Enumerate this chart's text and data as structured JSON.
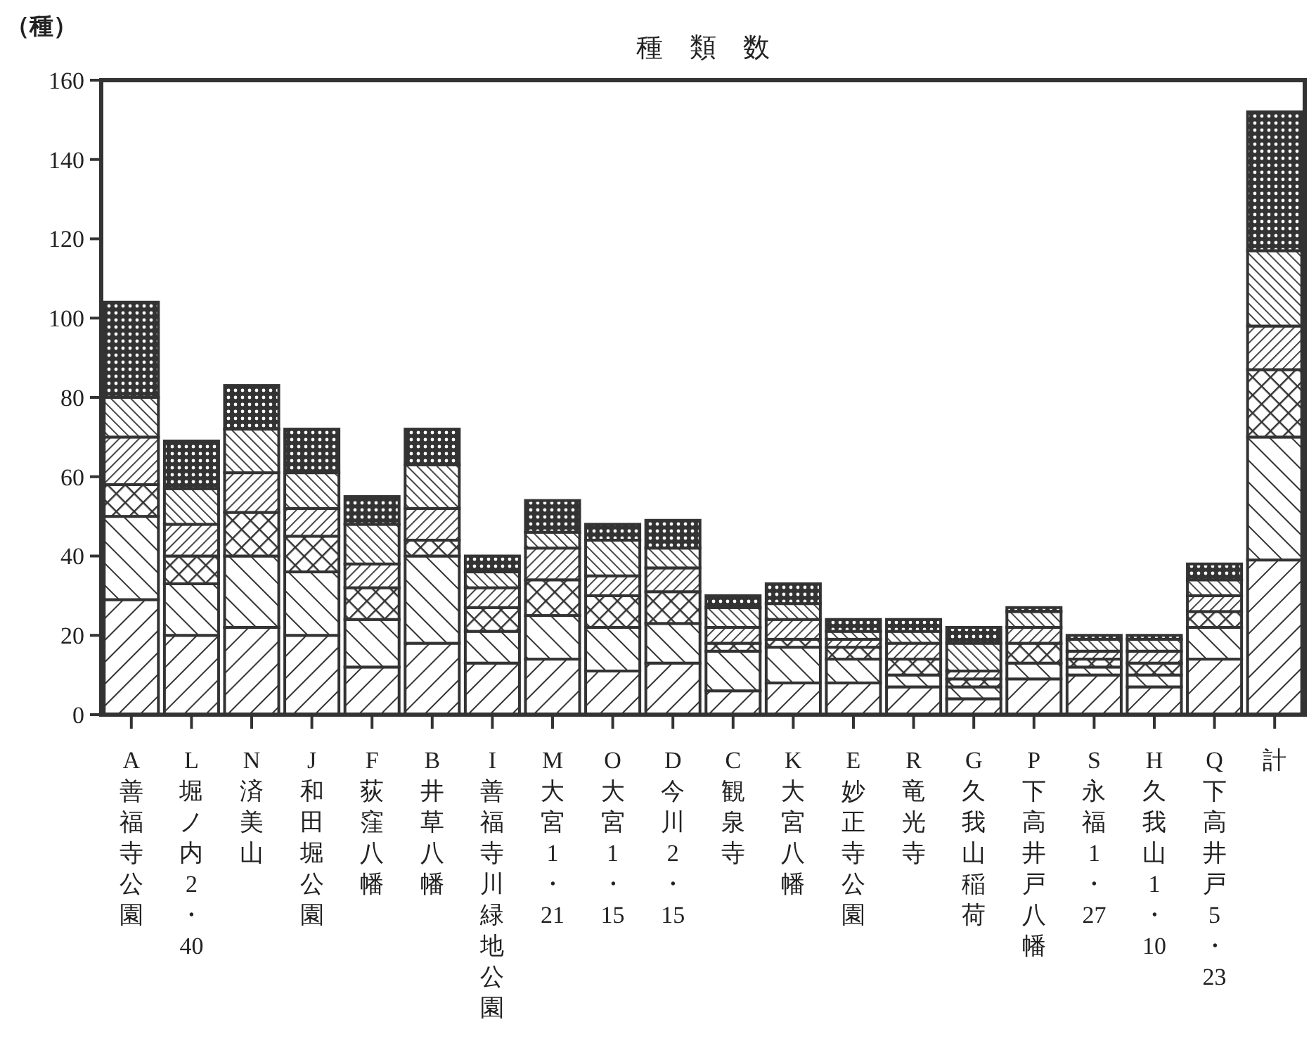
{
  "chart_data": {
    "type": "bar",
    "title": "種　類　数",
    "ylabel": "（種）",
    "stacked": true,
    "categories": [
      "A 善福寺公園",
      "L 堀ノ内2・40",
      "N 済美山",
      "J 和田堀公園",
      "F 荻窪八幡",
      "B 井草八幡",
      "I 善福寺川緑地公園",
      "M 大宮1・21",
      "O 大宮1・15",
      "D 今川2・15",
      "C 観泉寺",
      "K 大宮八幡",
      "E 妙正寺公園",
      "R 竜光寺",
      "G 久我山稲荷",
      "P 下高井戸八幡",
      "S 永福1・27",
      "H 久我山1・10",
      "Q 下高井戸5・23",
      "計"
    ],
    "series": [
      {
        "color": "#333333",
        "values": [
          29,
          20,
          22,
          20,
          12,
          18,
          13,
          14,
          11,
          13,
          6,
          8,
          8,
          7,
          4,
          9,
          10,
          7,
          14,
          39
        ]
      },
      {
        "color": "#333333",
        "values": [
          21,
          13,
          18,
          16,
          12,
          22,
          8,
          11,
          11,
          10,
          10,
          9,
          6,
          3,
          3,
          4,
          2,
          3,
          8,
          31
        ]
      },
      {
        "color": "#333333",
        "values": [
          8,
          7,
          11,
          9,
          8,
          4,
          6,
          9,
          8,
          8,
          2,
          2,
          3,
          4,
          2,
          5,
          2,
          3,
          4,
          17
        ]
      },
      {
        "color": "#333333",
        "values": [
          12,
          8,
          10,
          7,
          6,
          8,
          5,
          8,
          5,
          6,
          4,
          5,
          2,
          4,
          2,
          4,
          2,
          3,
          4,
          11
        ]
      },
      {
        "color": "#333333",
        "values": [
          10,
          9,
          11,
          9,
          10,
          11,
          4,
          4,
          9,
          5,
          5,
          4,
          2,
          3,
          7,
          4,
          3,
          3,
          4,
          19
        ]
      },
      {
        "color": "#333333",
        "values": [
          24,
          12,
          11,
          11,
          7,
          9,
          4,
          8,
          4,
          7,
          3,
          5,
          3,
          3,
          4,
          1,
          1,
          1,
          4,
          35
        ]
      }
    ],
    "ylim": [
      0,
      160
    ],
    "yticks": [
      0,
      20,
      40,
      60,
      80,
      100,
      120,
      140,
      160
    ],
    "grid": false
  }
}
